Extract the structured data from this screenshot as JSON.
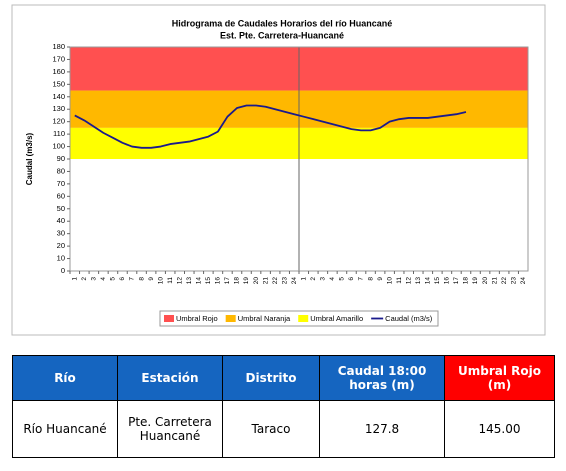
{
  "chart_data": {
    "type": "line",
    "title": "Hidrograma de Caudales Horarios del río Huancané",
    "subtitle": "Est. Pte. Carretera-Huancané",
    "y_label": "Caudal  (m3/s)",
    "categories": [
      "1",
      "2",
      "3",
      "4",
      "5",
      "6",
      "7",
      "8",
      "9",
      "10",
      "11",
      "12",
      "13",
      "14",
      "15",
      "16",
      "17",
      "18",
      "19",
      "20",
      "21",
      "22",
      "23",
      "24",
      "1",
      "2",
      "3",
      "4",
      "5",
      "6",
      "7",
      "8",
      "9",
      "10",
      "11",
      "12",
      "13",
      "14",
      "15",
      "16",
      "17",
      "18",
      "19",
      "20",
      "21",
      "22",
      "23",
      "24"
    ],
    "series": [
      {
        "name": "Caudal (m3/s)",
        "color": "#1a1a8c",
        "values": [
          125,
          121,
          116,
          111,
          107,
          103,
          100,
          99,
          99,
          100,
          102,
          103,
          104,
          106,
          108,
          112,
          124,
          131,
          133,
          133,
          132,
          130,
          128,
          126,
          124,
          122,
          120,
          118,
          116,
          114,
          113,
          113,
          115,
          120,
          122,
          123,
          123,
          123,
          124,
          125,
          126,
          127.8,
          null,
          null,
          null,
          null,
          null,
          null
        ]
      }
    ],
    "bands": [
      {
        "name": "Umbral Rojo",
        "color": "#ff5050",
        "from": 145,
        "to": 180
      },
      {
        "name": "Umbral Naranja",
        "color": "#ffb800",
        "from": 115,
        "to": 145
      },
      {
        "name": "Umbral Amarillo",
        "color": "#ffff00",
        "from": 90,
        "to": 115
      }
    ],
    "ylim": [
      0,
      180
    ],
    "yticks": [
      0,
      10,
      20,
      30,
      40,
      50,
      60,
      70,
      80,
      90,
      100,
      110,
      120,
      130,
      140,
      150,
      160,
      170,
      180
    ],
    "grid": false
  },
  "table": {
    "headers": [
      "Río",
      "Estación",
      "Distrito",
      "Caudal 18:00 horas (m)",
      "Umbral Rojo (m)"
    ],
    "rows": [
      [
        "Río Huancané",
        "Pte. Carretera Huancané",
        "Taraco",
        "127.8",
        "145.00"
      ]
    ]
  }
}
